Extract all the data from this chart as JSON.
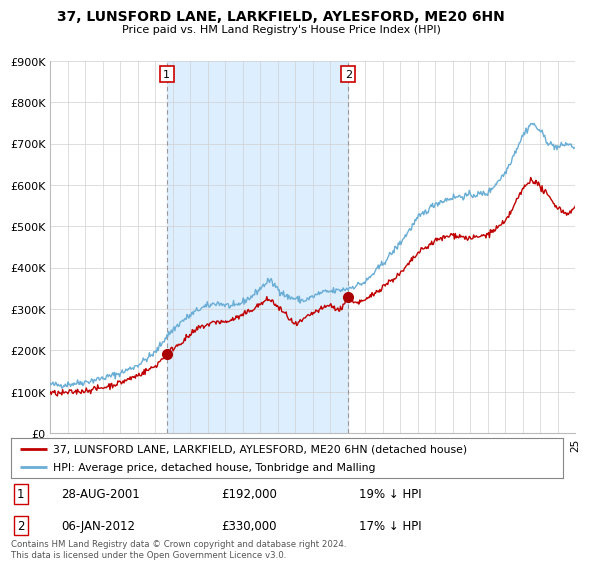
{
  "title": "37, LUNSFORD LANE, LARKFIELD, AYLESFORD, ME20 6HN",
  "subtitle": "Price paid vs. HM Land Registry's House Price Index (HPI)",
  "legend_line1": "37, LUNSFORD LANE, LARKFIELD, AYLESFORD, ME20 6HN (detached house)",
  "legend_line2": "HPI: Average price, detached house, Tonbridge and Malling",
  "footnote": "Contains HM Land Registry data © Crown copyright and database right 2024.\nThis data is licensed under the Open Government Licence v3.0.",
  "transaction1_date": "28-AUG-2001",
  "transaction1_price": "£192,000",
  "transaction1_hpi": "19% ↓ HPI",
  "transaction2_date": "06-JAN-2012",
  "transaction2_price": "£330,000",
  "transaction2_hpi": "17% ↓ HPI",
  "hpi_color": "#6aaed6",
  "price_color": "#c00000",
  "dashed_line_color": "#aaaaaa",
  "transaction_box_color": "#cc0000",
  "marker_fill": "#aa0000",
  "shaded_fill": "#ddeeff",
  "background_color": "#ffffff",
  "grid_color": "#d0d0d0",
  "ylim": [
    0,
    900000
  ],
  "yticks": [
    0,
    100000,
    200000,
    300000,
    400000,
    500000,
    600000,
    700000,
    800000,
    900000
  ],
  "ytick_labels": [
    "£0",
    "£100K",
    "£200K",
    "£300K",
    "£400K",
    "£500K",
    "£600K",
    "£700K",
    "£800K",
    "£900K"
  ],
  "transaction1_x": 2001.65,
  "transaction1_y": 192000,
  "transaction2_x": 2012.02,
  "transaction2_y": 330000,
  "xlim_start": 1995,
  "xlim_end": 2025
}
